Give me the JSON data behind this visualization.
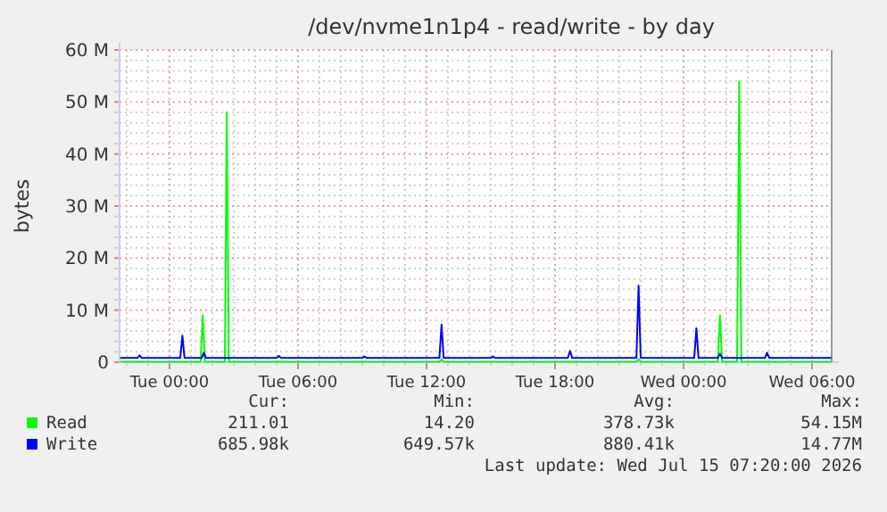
{
  "chart_data": {
    "type": "line",
    "title": "/dev/nvme1n1p4 - read/write - by day",
    "ylabel": "bytes",
    "xlim": [
      "2026-07-13T21:40",
      "2026-07-15T06:55"
    ],
    "ylim": [
      0,
      60
    ],
    "xticks": [
      {
        "value": "2026-07-13T22:00",
        "label": null
      },
      {
        "value": "2026-07-13T23:00",
        "label": null
      },
      {
        "value": "2026-07-14T00:00",
        "label": "Tue 00:00"
      },
      {
        "value": "2026-07-14T01:00",
        "label": null
      },
      {
        "value": "2026-07-14T02:00",
        "label": null
      },
      {
        "value": "2026-07-14T03:00",
        "label": null
      },
      {
        "value": "2026-07-14T04:00",
        "label": null
      },
      {
        "value": "2026-07-14T05:00",
        "label": null
      },
      {
        "value": "2026-07-14T06:00",
        "label": "Tue 06:00"
      },
      {
        "value": "2026-07-14T07:00",
        "label": null
      },
      {
        "value": "2026-07-14T08:00",
        "label": null
      },
      {
        "value": "2026-07-14T09:00",
        "label": null
      },
      {
        "value": "2026-07-14T10:00",
        "label": null
      },
      {
        "value": "2026-07-14T11:00",
        "label": null
      },
      {
        "value": "2026-07-14T12:00",
        "label": "Tue 12:00"
      },
      {
        "value": "2026-07-14T13:00",
        "label": null
      },
      {
        "value": "2026-07-14T14:00",
        "label": null
      },
      {
        "value": "2026-07-14T15:00",
        "label": null
      },
      {
        "value": "2026-07-14T16:00",
        "label": null
      },
      {
        "value": "2026-07-14T17:00",
        "label": null
      },
      {
        "value": "2026-07-14T18:00",
        "label": "Tue 18:00"
      },
      {
        "value": "2026-07-14T19:00",
        "label": null
      },
      {
        "value": "2026-07-14T20:00",
        "label": null
      },
      {
        "value": "2026-07-14T21:00",
        "label": null
      },
      {
        "value": "2026-07-14T22:00",
        "label": null
      },
      {
        "value": "2026-07-14T23:00",
        "label": null
      },
      {
        "value": "2026-07-15T00:00",
        "label": "Wed 00:00"
      },
      {
        "value": "2026-07-15T01:00",
        "label": null
      },
      {
        "value": "2026-07-15T02:00",
        "label": null
      },
      {
        "value": "2026-07-15T03:00",
        "label": null
      },
      {
        "value": "2026-07-15T04:00",
        "label": null
      },
      {
        "value": "2026-07-15T05:00",
        "label": null
      },
      {
        "value": "2026-07-15T06:00",
        "label": "Wed 06:00"
      }
    ],
    "yticks": [
      0,
      {
        "value": 2,
        "label": null
      },
      {
        "value": 4,
        "label": null
      },
      {
        "value": 6,
        "label": null
      },
      {
        "value": 8,
        "label": null
      },
      {
        "value": 10,
        "label": "10 M"
      },
      {
        "value": 12,
        "label": null
      },
      {
        "value": 14,
        "label": null
      },
      {
        "value": 16,
        "label": null
      },
      {
        "value": 18,
        "label": null
      },
      {
        "value": 20,
        "label": "20 M"
      },
      {
        "value": 22,
        "label": null
      },
      {
        "value": 24,
        "label": null
      },
      {
        "value": 26,
        "label": null
      },
      {
        "value": 28,
        "label": null
      },
      {
        "value": 30,
        "label": "30 M"
      },
      {
        "value": 32,
        "label": null
      },
      {
        "value": 34,
        "label": null
      },
      {
        "value": 36,
        "label": null
      },
      {
        "value": 38,
        "label": null
      },
      {
        "value": 40,
        "label": "40 M"
      },
      {
        "value": 42,
        "label": null
      },
      {
        "value": 44,
        "label": null
      },
      {
        "value": 46,
        "label": null
      },
      {
        "value": 48,
        "label": null
      },
      {
        "value": 50,
        "label": "50 M"
      },
      {
        "value": 52,
        "label": null
      },
      {
        "value": 54,
        "label": null
      },
      {
        "value": 56,
        "label": null
      },
      {
        "value": 58,
        "label": null
      },
      {
        "value": 60,
        "label": "60 M"
      }
    ],
    "grid": true,
    "legend": "bottom left",
    "line_style": "solid",
    "series": [
      {
        "name": "Read",
        "color": "#00ff00",
        "x": [
          "2026-07-13T21:42",
          "2026-07-14T01:27",
          "2026-07-14T01:33",
          "2026-07-14T01:39",
          "2026-07-14T02:35",
          "2026-07-14T02:40",
          "2026-07-14T02:46",
          "2026-07-14T12:36",
          "2026-07-14T12:42",
          "2026-07-14T12:48",
          "2026-07-14T21:48",
          "2026-07-14T21:54",
          "2026-07-14T22:00",
          "2026-07-15T01:36",
          "2026-07-15T01:42",
          "2026-07-15T01:48",
          "2026-07-15T02:30",
          "2026-07-15T02:36",
          "2026-07-15T02:42",
          "2026-07-15T06:54"
        ],
        "values": [
          0.1,
          0.1,
          9,
          0.1,
          0.1,
          48,
          0.1,
          0.1,
          0.5,
          0.1,
          0.1,
          0.6,
          0.1,
          0.1,
          9,
          0.1,
          0.1,
          54,
          0.1,
          0.1
        ]
      },
      {
        "name": "Write",
        "color": "#0000ff",
        "x": [
          "2026-07-13T21:42",
          "2026-07-13T22:30",
          "2026-07-13T22:36",
          "2026-07-13T22:42",
          "2026-07-14T00:30",
          "2026-07-14T00:36",
          "2026-07-14T00:42",
          "2026-07-14T01:30",
          "2026-07-14T01:36",
          "2026-07-14T01:42",
          "2026-07-14T05:00",
          "2026-07-14T05:06",
          "2026-07-14T05:12",
          "2026-07-14T09:00",
          "2026-07-14T09:06",
          "2026-07-14T09:12",
          "2026-07-14T12:36",
          "2026-07-14T12:42",
          "2026-07-14T12:48",
          "2026-07-14T15:00",
          "2026-07-14T15:06",
          "2026-07-14T15:12",
          "2026-07-14T18:36",
          "2026-07-14T18:42",
          "2026-07-14T18:48",
          "2026-07-14T21:48",
          "2026-07-14T21:54",
          "2026-07-14T22:00",
          "2026-07-15T00:30",
          "2026-07-15T00:36",
          "2026-07-15T00:42",
          "2026-07-15T01:36",
          "2026-07-15T01:42",
          "2026-07-15T01:48",
          "2026-07-15T03:48",
          "2026-07-15T03:54",
          "2026-07-15T04:00",
          "2026-07-15T06:54"
        ],
        "values": [
          0.8,
          0.8,
          1.3,
          0.8,
          0.8,
          5.1,
          0.8,
          0.8,
          1.8,
          0.8,
          0.8,
          1.2,
          0.8,
          0.8,
          1.1,
          0.8,
          0.8,
          7.2,
          0.8,
          0.8,
          1.1,
          0.8,
          0.8,
          2.2,
          0.8,
          0.8,
          14.7,
          0.8,
          0.8,
          6.5,
          0.8,
          0.8,
          1.6,
          0.8,
          0.8,
          1.8,
          0.8,
          0.8
        ]
      }
    ],
    "annotations": [
      "Cur:",
      "Min:",
      "Avg:",
      "Max:",
      "211.01",
      "14.20",
      "378.73k",
      "54.15M",
      "685.98k",
      "649.57k",
      "880.41k",
      "14.77M",
      "Last update: Wed Jul 15 07:20:00 2026"
    ]
  }
}
